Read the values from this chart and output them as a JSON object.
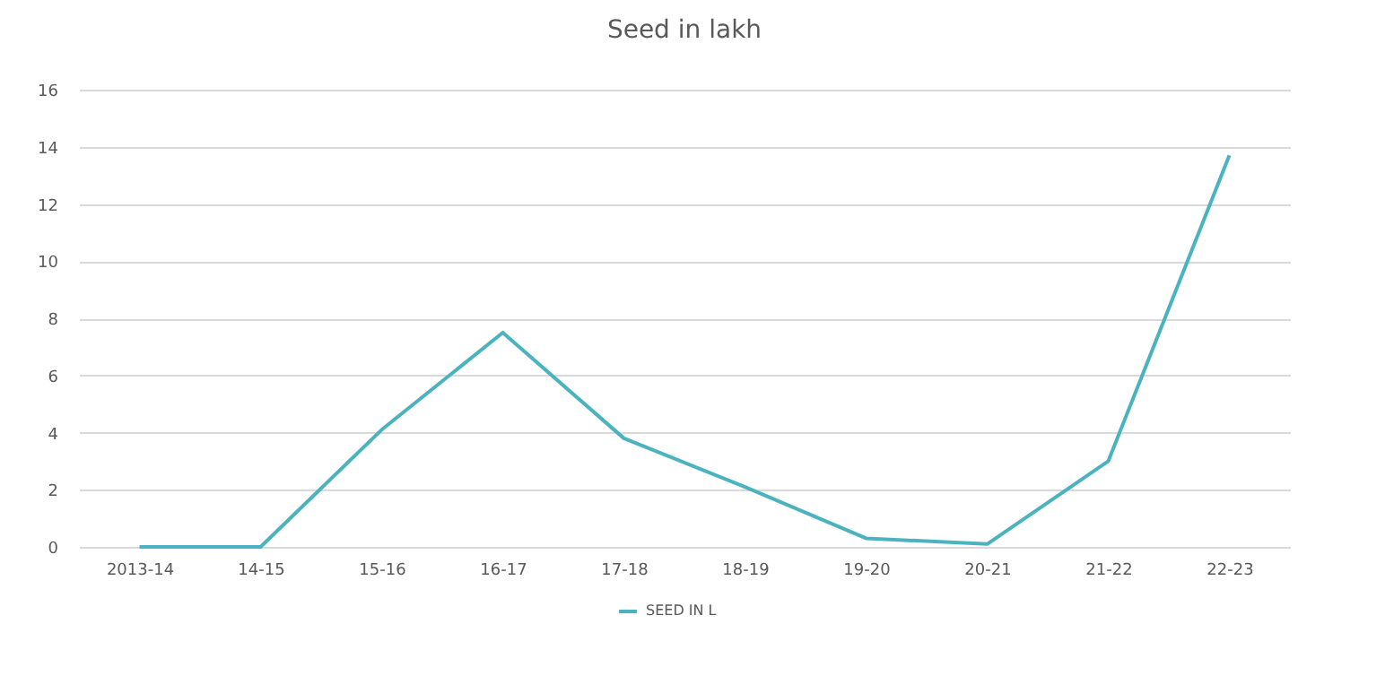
{
  "chart_data": {
    "type": "line",
    "title": "Seed in lakh",
    "categories": [
      "2013-14",
      "14-15",
      "15-16",
      "16-17",
      "17-18",
      "18-19",
      "19-20",
      "20-21",
      "21-22",
      "22-23"
    ],
    "series": [
      {
        "name": "SEED IN L",
        "color": "#4bb3c0",
        "values": [
          0,
          0,
          4.1,
          7.5,
          3.8,
          2.1,
          0.3,
          0.1,
          3.0,
          13.7
        ]
      }
    ],
    "ylim": [
      0,
      16
    ],
    "yticks": [
      0,
      2,
      4,
      6,
      8,
      10,
      12,
      14,
      16
    ],
    "grid": "y",
    "legend": "bottom",
    "marker": "none",
    "line_style": "solid"
  }
}
